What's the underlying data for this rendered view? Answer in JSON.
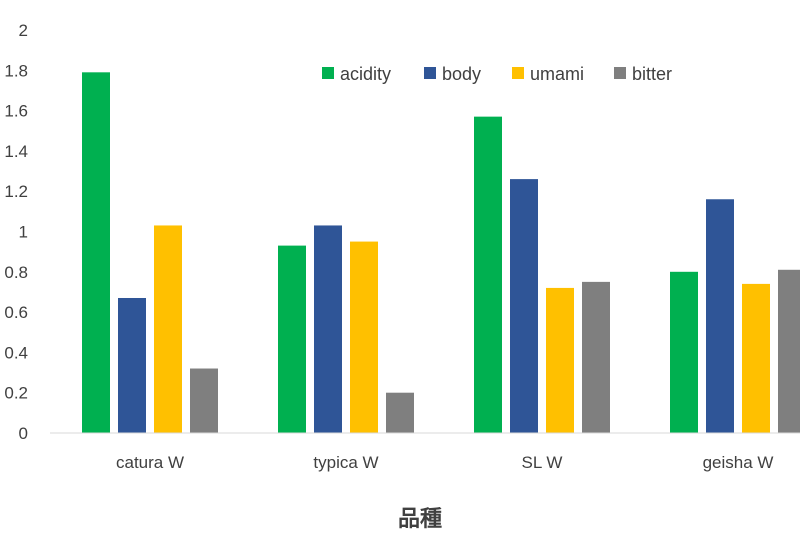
{
  "chart_data": {
    "type": "bar",
    "title": "",
    "xlabel": "品種",
    "ylabel": "",
    "ylim": [
      0,
      2
    ],
    "yticks": [
      "0",
      "0.2",
      "0.4",
      "0.6",
      "0.8",
      "1",
      "1.2",
      "1.4",
      "1.6",
      "1.8",
      "2"
    ],
    "grid": false,
    "legend_position": "top-right",
    "categories": [
      "catura W",
      "typica W",
      "SL W",
      "geisha W"
    ],
    "series": [
      {
        "name": "acidity",
        "color": "#00b050",
        "values": [
          1.79,
          0.93,
          1.57,
          0.8
        ]
      },
      {
        "name": "body",
        "color": "#2f5597",
        "values": [
          0.67,
          1.03,
          1.26,
          1.16
        ]
      },
      {
        "name": "umami",
        "color": "#ffc000",
        "values": [
          1.03,
          0.95,
          0.72,
          0.74
        ]
      },
      {
        "name": "bitter",
        "color": "#7f7f7f",
        "values": [
          0.32,
          0.2,
          0.75,
          0.81
        ]
      }
    ]
  }
}
